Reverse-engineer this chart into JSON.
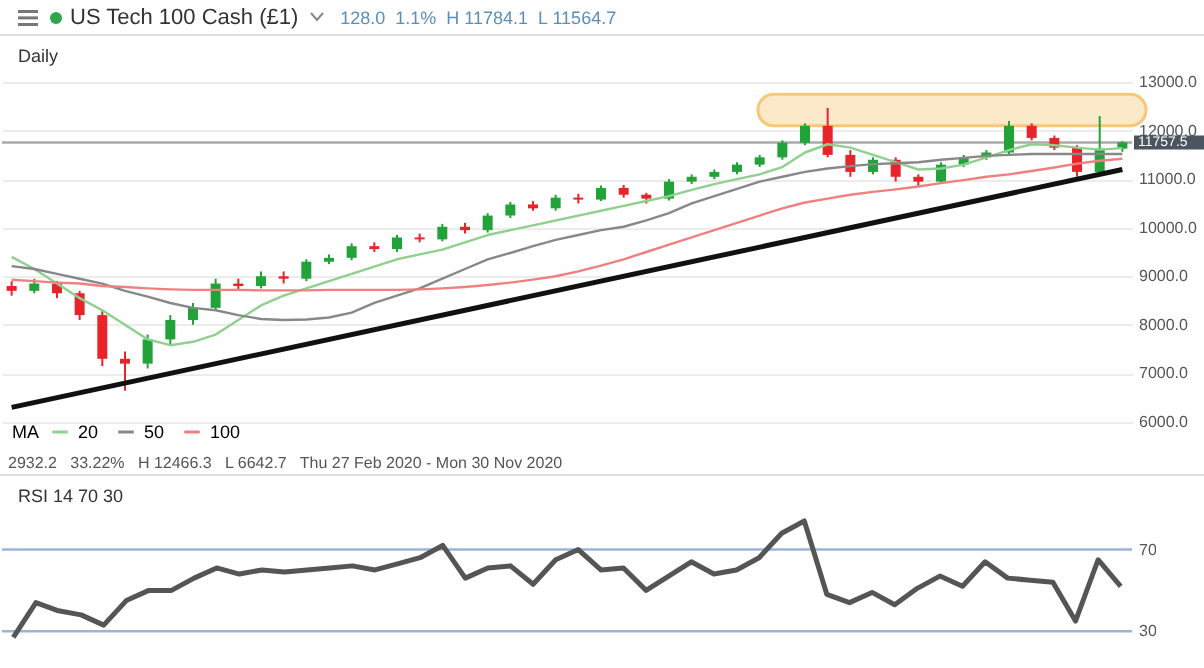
{
  "chart_data": [
    {
      "type": "candlestick",
      "title": "US Tech 100 Cash (£1)",
      "subtitle": "128.0  1.1%  H 11784.1  L 11564.7",
      "annotations": [
        "Daily",
        "2932.2   33.22%   H 12466.3   L 6642.7   Thu 27 Feb 2020 - Mon 30 Nov 2020"
      ],
      "categories": [
        null,
        null,
        null,
        null,
        null,
        null,
        null,
        null,
        null,
        null,
        null,
        null,
        null,
        null,
        null,
        null,
        null,
        null,
        null,
        null,
        null,
        null,
        null,
        null,
        null,
        null,
        null,
        null,
        null,
        null,
        null,
        null,
        null,
        null,
        null,
        null,
        null,
        null,
        null,
        null,
        null,
        null,
        null,
        null,
        null,
        null,
        null,
        null,
        null,
        null
      ],
      "ohlc": [
        [
          8800,
          8900,
          8600,
          8700
        ],
        [
          8700,
          8950,
          8650,
          8850
        ],
        [
          8850,
          8900,
          8550,
          8650
        ],
        [
          8650,
          8700,
          8100,
          8200
        ],
        [
          8200,
          8300,
          7150,
          7300
        ],
        [
          7300,
          7450,
          6642.7,
          7200
        ],
        [
          7200,
          7800,
          7100,
          7700
        ],
        [
          7700,
          8200,
          7600,
          8100
        ],
        [
          8100,
          8450,
          8000,
          8350
        ],
        [
          8350,
          8950,
          8300,
          8850
        ],
        [
          8850,
          8950,
          8700,
          8800
        ],
        [
          8800,
          9100,
          8750,
          9000
        ],
        [
          9000,
          9100,
          8850,
          8950
        ],
        [
          8950,
          9350,
          8900,
          9300
        ],
        [
          9300,
          9450,
          9250,
          9380
        ],
        [
          9380,
          9680,
          9330,
          9620
        ],
        [
          9620,
          9700,
          9500,
          9560
        ],
        [
          9560,
          9850,
          9500,
          9800
        ],
        [
          9800,
          9880,
          9700,
          9760
        ],
        [
          9760,
          10080,
          9720,
          10020
        ],
        [
          10020,
          10100,
          9880,
          9950
        ],
        [
          9950,
          10300,
          9900,
          10250
        ],
        [
          10250,
          10530,
          10200,
          10480
        ],
        [
          10480,
          10550,
          10350,
          10400
        ],
        [
          10400,
          10680,
          10350,
          10620
        ],
        [
          10620,
          10700,
          10500,
          10580
        ],
        [
          10580,
          10870,
          10550,
          10820
        ],
        [
          10820,
          10880,
          10620,
          10680
        ],
        [
          10680,
          10720,
          10500,
          10600
        ],
        [
          10600,
          11000,
          10560,
          10950
        ],
        [
          10950,
          11100,
          10900,
          11050
        ],
        [
          11050,
          11200,
          11000,
          11150
        ],
        [
          11150,
          11350,
          11100,
          11300
        ],
        [
          11300,
          11500,
          11250,
          11450
        ],
        [
          11450,
          11800,
          11400,
          11750
        ],
        [
          11750,
          12150,
          11700,
          12100
        ],
        [
          12100,
          12466.3,
          11450,
          11500
        ],
        [
          11500,
          11600,
          11050,
          11150
        ],
        [
          11150,
          11450,
          11100,
          11400
        ],
        [
          11400,
          11450,
          10950,
          11050
        ],
        [
          11050,
          11100,
          10850,
          10950
        ],
        [
          10950,
          11350,
          10900,
          11300
        ],
        [
          11300,
          11500,
          11250,
          11450
        ],
        [
          11450,
          11600,
          11400,
          11550
        ],
        [
          11550,
          12200,
          11500,
          12100
        ],
        [
          12100,
          12150,
          11800,
          11850
        ],
        [
          11850,
          11900,
          11600,
          11650
        ],
        [
          11650,
          11700,
          11050,
          11150
        ],
        [
          11150,
          12300,
          11100,
          11629.5
        ],
        [
          11629.5,
          11784.1,
          11564.7,
          11757.5
        ]
      ],
      "series": [
        {
          "type": "line",
          "name": "20",
          "color": "#8fd08f",
          "values": [
            9400,
            9150,
            8850,
            8550,
            8300,
            8000,
            7700,
            7580,
            7650,
            7800,
            8100,
            8400,
            8600,
            8750,
            8900,
            9050,
            9200,
            9350,
            9450,
            9550,
            9700,
            9850,
            9950,
            10050,
            10150,
            10250,
            10350,
            10450,
            10550,
            10650,
            10780,
            10900,
            11000,
            11100,
            11250,
            11550,
            11720,
            11650,
            11500,
            11350,
            11200,
            11220,
            11300,
            11450,
            11600,
            11720,
            11700,
            11650,
            11610,
            11640
          ]
        },
        {
          "type": "line",
          "name": "50",
          "color": "#888888",
          "values": [
            9210,
            9150,
            9050,
            8950,
            8850,
            8700,
            8580,
            8450,
            8350,
            8300,
            8200,
            8120,
            8100,
            8110,
            8150,
            8250,
            8450,
            8600,
            8750,
            8950,
            9150,
            9350,
            9480,
            9620,
            9750,
            9850,
            9950,
            10020,
            10150,
            10300,
            10500,
            10650,
            10800,
            10950,
            11050,
            11150,
            11220,
            11270,
            11310,
            11330,
            11350,
            11400,
            11440,
            11480,
            11500,
            11520,
            11520,
            11520,
            11520,
            11520
          ]
        },
        {
          "type": "line",
          "name": "100",
          "color": "#f08080",
          "values": [
            8930,
            8900,
            8870,
            8850,
            8800,
            8780,
            8750,
            8730,
            8720,
            8720,
            8720,
            8710,
            8710,
            8710,
            8720,
            8720,
            8720,
            8720,
            8730,
            8750,
            8780,
            8820,
            8870,
            8930,
            9000,
            9100,
            9220,
            9350,
            9500,
            9650,
            9800,
            9950,
            10100,
            10250,
            10400,
            10520,
            10600,
            10680,
            10740,
            10790,
            10850,
            10920,
            10980,
            11050,
            11100,
            11170,
            11240,
            11320,
            11380,
            11420
          ]
        },
        {
          "type": "line",
          "color": "#111111",
          "values": [
            6300,
            null,
            null,
            null,
            null,
            null,
            null,
            null,
            null,
            null,
            null,
            null,
            null,
            null,
            null,
            null,
            null,
            null,
            null,
            null,
            null,
            null,
            null,
            null,
            null,
            null,
            null,
            null,
            null,
            null,
            null,
            null,
            null,
            null,
            null,
            null,
            null,
            null,
            null,
            null,
            null,
            null,
            null,
            null,
            null,
            null,
            null,
            null,
            null,
            11200
          ]
        }
      ],
      "legend_title": "MA",
      "legend": "bottom left",
      "ylim": [
        5380,
        13950
      ],
      "yticks": [
        {
          "value": 6000,
          "label": "6000.0"
        },
        {
          "value": 7000,
          "label": "7000.0"
        },
        {
          "value": 8000,
          "label": "8000.0"
        },
        {
          "value": 9000,
          "label": "9000.0"
        },
        {
          "value": 10000,
          "label": "10000.0"
        },
        {
          "value": 11000,
          "label": "11000.0"
        },
        {
          "value": 12000,
          "label": "12000.0"
        },
        {
          "value": 13000,
          "label": "13000.0"
        }
      ],
      "ref_lines": [
        {
          "axis": "y",
          "value": 11757.5,
          "label": "11757.5",
          "color": "#aaaaaa"
        }
      ],
      "bands": [
        {
          "axis": "y",
          "from": 12100,
          "to": 12750,
          "color": "#f7c779"
        }
      ],
      "grid": "y",
      "tick_labels": "y"
    },
    {
      "type": "line",
      "title": "RSI 14 70 30",
      "categories": [
        null,
        null,
        null,
        null,
        null,
        null,
        null,
        null,
        null,
        null,
        null,
        null,
        null,
        null,
        null,
        null,
        null,
        null,
        null,
        null,
        null,
        null,
        null,
        null,
        null,
        null,
        null,
        null,
        null,
        null,
        null,
        null,
        null,
        null,
        null,
        null,
        null,
        null,
        null,
        null,
        null,
        null,
        null,
        null,
        null,
        null,
        null,
        null,
        null,
        null
      ],
      "series": [
        {
          "color": "#555555",
          "values": [
            27,
            44,
            40,
            38,
            33,
            45,
            50,
            50,
            56,
            61,
            58,
            60,
            59,
            60,
            61,
            62,
            60,
            63,
            66,
            72,
            56,
            61,
            62,
            53,
            65,
            70,
            60,
            61,
            50,
            57,
            64,
            58,
            60,
            66,
            78,
            84,
            48,
            44,
            49,
            43,
            51,
            57,
            52,
            64,
            56,
            55,
            54,
            35,
            65,
            52
          ]
        }
      ],
      "ylim": [
        12,
        106
      ],
      "yticks": [
        30,
        70
      ],
      "ref_lines": [
        {
          "axis": "y",
          "value": 70,
          "color": "#9db4d6"
        },
        {
          "axis": "y",
          "value": 30,
          "color": "#9db4d6"
        }
      ],
      "tick_labels": "y"
    }
  ]
}
